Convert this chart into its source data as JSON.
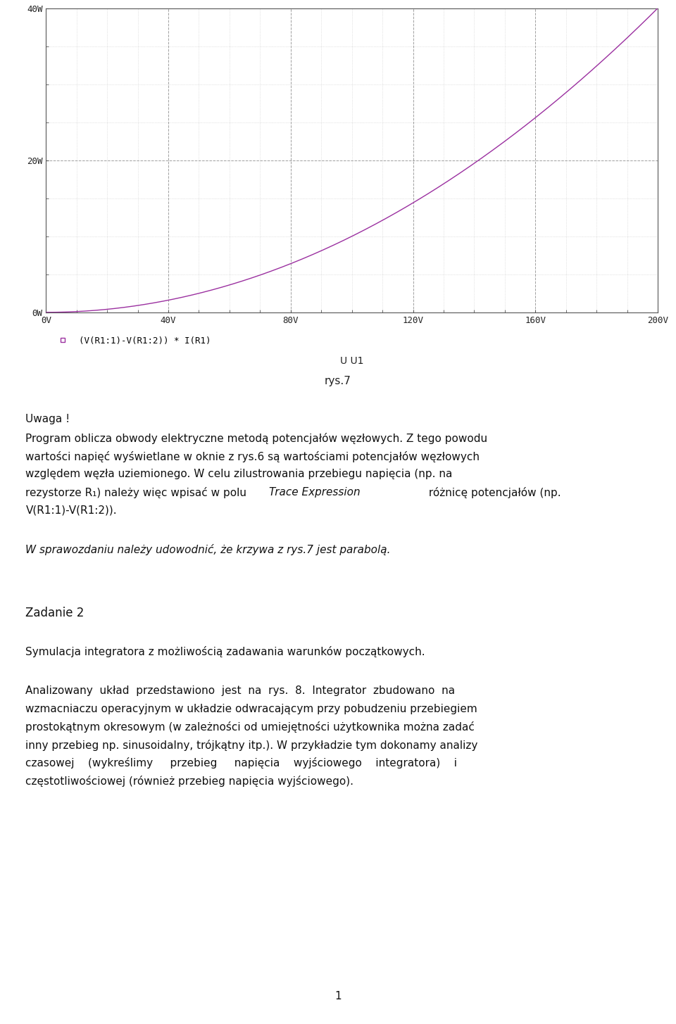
{
  "plot_xlim": [
    0,
    200
  ],
  "plot_ylim": [
    0,
    40
  ],
  "xticks": [
    0,
    40,
    80,
    120,
    160,
    200
  ],
  "xtick_labels": [
    "0V",
    "40V",
    "80V",
    "120V",
    "160V",
    "200V"
  ],
  "yticks": [
    0,
    20,
    40
  ],
  "ytick_labels": [
    "0W",
    "20W",
    "40W"
  ],
  "curve_color": "#9b30a0",
  "curve_label": "(V(R1:1)-V(R1:2)) * I(R1)",
  "xlabel": "U U1",
  "figure_caption": "rys.7",
  "bg_color": "#ffffff",
  "plot_bg_color": "#ffffff",
  "grid_major_color": "#888888",
  "grid_minor_color": "#aaaaaa",
  "page_number": "1",
  "text_color": "#111111",
  "uwaga_header": "Uwaga !",
  "para1_line1": "Program oblicza obwody elektryczne metodą potencjałów węzłowych. Z tego powodu",
  "para1_line2": "wartości napięć wyświetlane w oknie z rys.6 są wartościami potencjałów węzłowych",
  "para1_line3": "względem węzła uziemionego. W celu zilustrowania przebiegu napięcia (np. na",
  "para1_line4_a": "rezystorze R",
  "para1_line4_b": "1",
  "para1_line4_c": ") należy więc wpisać w polu ",
  "para1_line4_d": "Trace Expression",
  "para1_line4_e": " różnicę potencjałów (np.",
  "para1_line5": "V(R1:1)-V(R1:2)).",
  "italic_line": "W sprawozdaniu należy udowodnić, że krzywa z rys.7 jest parabolą.",
  "zadanie_header": "Zadanie 2",
  "symulacja_line": "Symulacja integratora z możliwością zadawania warunków początkowych.",
  "para3_line1": "Analizowany  układ  przedstawiono  jest  na  rys.  8.  Integrator  zbudowano  na",
  "para3_line2": "wzmacniaczu operacyjnym w układzie odwracającym przy pobudzeniu przebiegiem",
  "para3_line3": "prostokątnym okresowym (w zależności od umiejętności użytkownika można zadać",
  "para3_line4": "inny przebieg np. sinusoidalny, trójkątny itp.). W przykładzie tym dokonamy analizy",
  "para3_line5": "czasowej    (wykreślimy     przebieg     napięcia    wyjściowego    integratora)    i",
  "para3_line6": "częstotliwościowej (również przebieg napięcia wyjściowego)."
}
